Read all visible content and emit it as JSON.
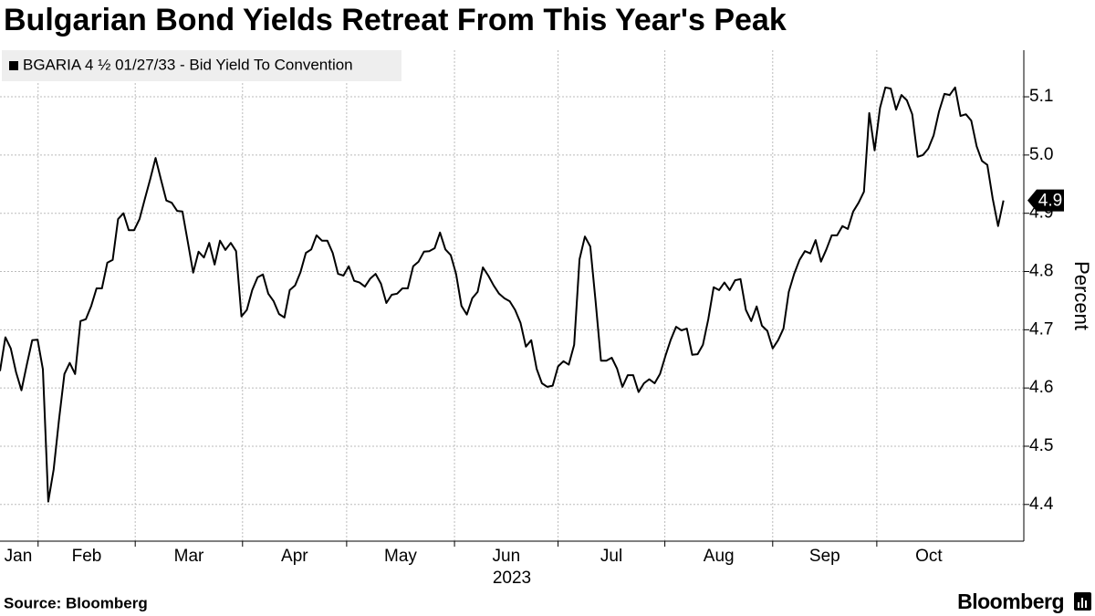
{
  "chart_data": {
    "type": "line",
    "title": "Bulgarian Bond Yields Retreat From This Year's Peak",
    "xlabel": "2023",
    "ylabel": "Percent",
    "source": "Source: Bloomberg",
    "brand": "Bloomberg",
    "last_value_label": "4.9",
    "series": [
      {
        "name": "BGARIA 4 ½ 01/27/33 - Bid Yield To Convention",
        "color": "#000000",
        "values": [
          4.629,
          4.687,
          4.668,
          4.627,
          4.596,
          4.64,
          4.682,
          4.683,
          4.632,
          4.405,
          4.46,
          4.546,
          4.624,
          4.643,
          4.624,
          4.715,
          4.718,
          4.741,
          4.771,
          4.771,
          4.815,
          4.82,
          4.89,
          4.9,
          4.871,
          4.871,
          4.89,
          4.925,
          4.959,
          4.995,
          4.958,
          4.922,
          4.918,
          4.904,
          4.903,
          4.851,
          4.798,
          4.834,
          4.824,
          4.849,
          4.812,
          4.853,
          4.837,
          4.849,
          4.835,
          4.723,
          4.734,
          4.768,
          4.79,
          4.795,
          4.762,
          4.749,
          4.727,
          4.721,
          4.768,
          4.776,
          4.799,
          4.832,
          4.838,
          4.862,
          4.853,
          4.853,
          4.832,
          4.796,
          4.793,
          4.809,
          4.784,
          4.781,
          4.774,
          4.788,
          4.796,
          4.779,
          4.746,
          4.76,
          4.762,
          4.771,
          4.771,
          4.809,
          4.817,
          4.834,
          4.835,
          4.84,
          4.867,
          4.838,
          4.828,
          4.796,
          4.741,
          4.726,
          4.754,
          4.765,
          4.807,
          4.793,
          4.776,
          4.762,
          4.754,
          4.749,
          4.734,
          4.712,
          4.671,
          4.682,
          4.633,
          4.608,
          4.602,
          4.604,
          4.637,
          4.646,
          4.64,
          4.674,
          4.821,
          4.86,
          4.843,
          4.749,
          4.647,
          4.647,
          4.652,
          4.633,
          4.602,
          4.622,
          4.622,
          4.593,
          4.608,
          4.615,
          4.608,
          4.624,
          4.655,
          4.683,
          4.705,
          4.699,
          4.702,
          4.657,
          4.658,
          4.674,
          4.718,
          4.773,
          4.768,
          4.781,
          4.768,
          4.785,
          4.787,
          4.734,
          4.715,
          4.74,
          4.707,
          4.698,
          4.668,
          4.682,
          4.702,
          4.765,
          4.796,
          4.82,
          4.835,
          4.831,
          4.854,
          4.817,
          4.838,
          4.862,
          4.862,
          4.878,
          4.873,
          4.903,
          4.918,
          4.937,
          5.072,
          5.008,
          5.081,
          5.116,
          5.114,
          5.078,
          5.103,
          5.094,
          5.07,
          4.997,
          5.0,
          5.011,
          5.034,
          5.075,
          5.105,
          5.103,
          5.116,
          5.067,
          5.07,
          5.059,
          5.015,
          4.99,
          4.983,
          4.925,
          4.878,
          4.922
        ]
      }
    ],
    "xlim": [
      0,
      190.8
    ],
    "xticks": [
      {
        "value": -12.8,
        "label": "Jan"
      },
      {
        "value": 7.1,
        "label": "Feb"
      },
      {
        "value": 25.2,
        "label": "Mar"
      },
      {
        "value": 45.2,
        "label": "Apr"
      },
      {
        "value": 64.6,
        "label": "May"
      },
      {
        "value": 84.7,
        "label": "Jun"
      },
      {
        "value": 104.0,
        "label": "Jul"
      },
      {
        "value": 123.9,
        "label": "Aug"
      },
      {
        "value": 144.0,
        "label": "Sep"
      },
      {
        "value": 163.4,
        "label": "Oct"
      }
    ],
    "ylim": [
      4.337,
      5.18
    ],
    "yticks": [
      4.4,
      4.5,
      4.6,
      4.7,
      4.8,
      4.9,
      {
        "value": 5,
        "label": "5.0"
      },
      5.1
    ],
    "grid": true
  }
}
